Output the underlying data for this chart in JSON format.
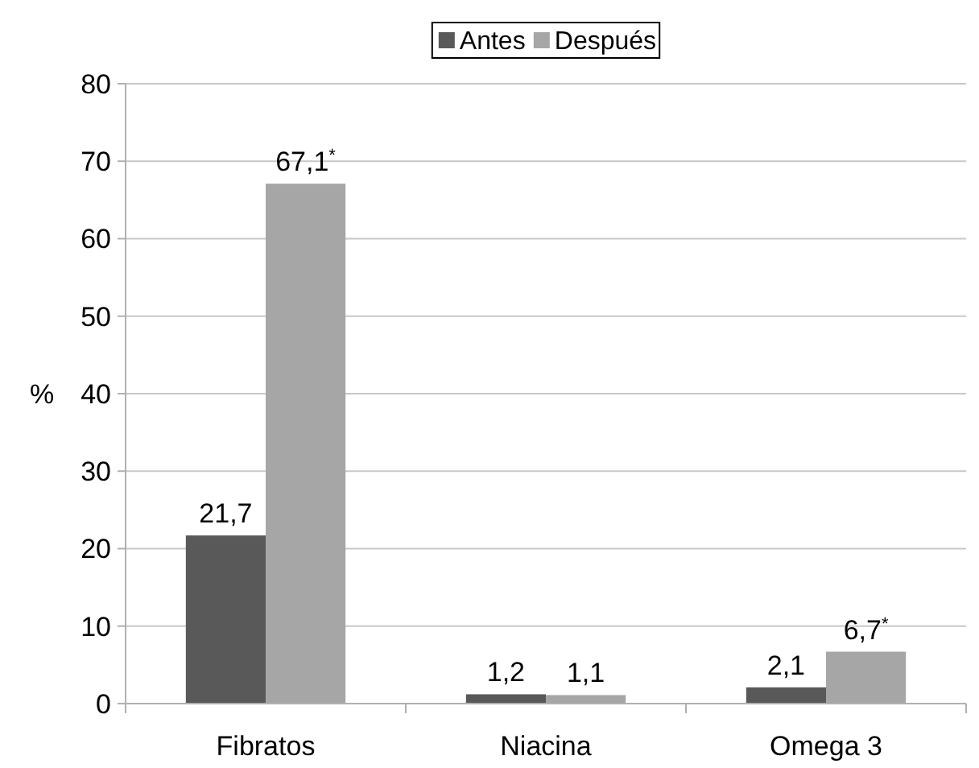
{
  "chart_data": {
    "type": "bar",
    "ylabel": "%",
    "categories": [
      "Fibratos",
      "Niacina",
      "Omega 3"
    ],
    "series": [
      {
        "name": "Antes",
        "color": "#595959",
        "values": [
          21.7,
          1.2,
          2.1
        ],
        "value_labels": [
          "21,7",
          "1,2",
          "2,1"
        ]
      },
      {
        "name": "Después",
        "color": "#a6a6a6",
        "values": [
          67.1,
          1.1,
          6.7
        ],
        "value_labels": [
          "67,1$^{*}$",
          "1,1",
          "6,7$^{*}$"
        ]
      }
    ],
    "ylim": [
      0,
      80
    ],
    "yticks": [
      0,
      10,
      20,
      30,
      40,
      50,
      60,
      70,
      80
    ],
    "grid": "y",
    "legend": "top"
  }
}
